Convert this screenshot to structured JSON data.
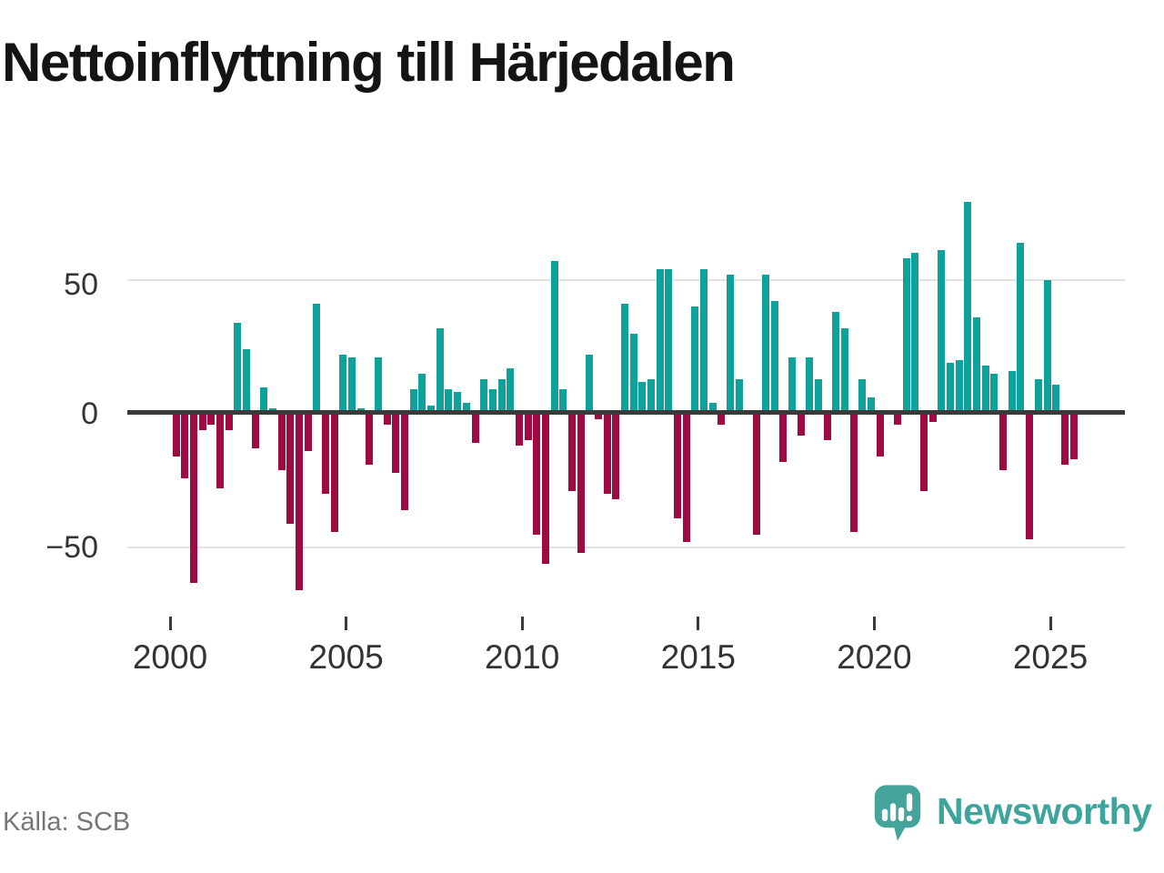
{
  "title": "Nettoinflyttning till Härjedalen",
  "source": "Källa: SCB",
  "logo": {
    "wordmark": "Newsworthy"
  },
  "y_axis": {
    "labels": [
      "50",
      "0",
      "−50"
    ]
  },
  "x_axis": {
    "labels": [
      "2000",
      "2005",
      "2010",
      "2015",
      "2020",
      "2025"
    ]
  },
  "chart_data": {
    "type": "bar",
    "title": "Nettoinflyttning till Härjedalen",
    "source_caption": "Källa: SCB",
    "x_unit": "quarter",
    "start": "2000-Q1",
    "end": "2025-Q3",
    "x_tick_labels": [
      "2000",
      "2005",
      "2010",
      "2015",
      "2020",
      "2025"
    ],
    "y_tick_values": [
      50,
      0,
      -50
    ],
    "ylim": [
      -70,
      85
    ],
    "grid": "horizontal-gridlines-at-50-and-minus50",
    "legend": "none",
    "colors": {
      "positive": "#0fa29b",
      "negative": "#9e0b42",
      "axis": "#3a3a3a",
      "gridline": "#e2e2e2"
    },
    "values": [
      -16,
      -24,
      -63,
      -6,
      -4,
      -28,
      -6,
      34,
      24,
      -13,
      10,
      2,
      -21,
      -41,
      -66,
      -14,
      41,
      -30,
      -44,
      22,
      21,
      2,
      -19,
      21,
      -4,
      -22,
      -36,
      9,
      15,
      3,
      32,
      9,
      8,
      4,
      -11,
      13,
      9,
      13,
      17,
      -12,
      -10,
      -45,
      -56,
      57,
      9,
      -29,
      -52,
      22,
      -2,
      -30,
      -32,
      41,
      30,
      12,
      13,
      54,
      54,
      -39,
      -48,
      40,
      54,
      4,
      -4,
      52,
      13,
      0,
      -45,
      52,
      42,
      -18,
      21,
      -8,
      21,
      13,
      -10,
      38,
      32,
      -44,
      13,
      6,
      -16,
      0,
      -4,
      58,
      60,
      -29,
      -3,
      61,
      19,
      20,
      79,
      36,
      18,
      15,
      -21,
      16,
      64,
      -47,
      13,
      50,
      11,
      -19,
      -17
    ]
  }
}
